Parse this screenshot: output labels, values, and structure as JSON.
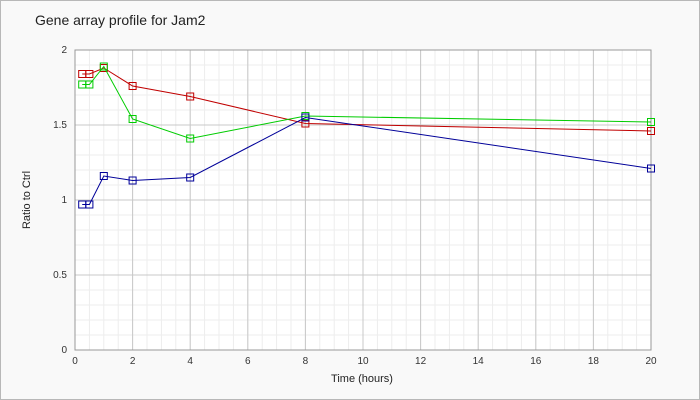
{
  "chart_data": {
    "type": "line",
    "title": "Gene array profile for Jam2",
    "xlabel": "Time (hours)",
    "ylabel": "Ratio to Ctrl",
    "xlim": [
      0,
      20
    ],
    "ylim": [
      0,
      2
    ],
    "xticks": [
      0,
      2,
      4,
      6,
      8,
      10,
      12,
      14,
      16,
      18,
      20
    ],
    "yticks": [
      0,
      0.5,
      1,
      1.5,
      2
    ],
    "xtick_labels": [
      "0",
      "2",
      "4",
      "6",
      "8",
      "10",
      "12",
      "14",
      "16",
      "18",
      "20"
    ],
    "ytick_labels": [
      "0",
      "0.5",
      "1",
      "1.5",
      "2"
    ],
    "grid": true,
    "legend": "none",
    "marker": "square",
    "series": [
      {
        "color": "#c00000",
        "x": [
          0.25,
          0.5,
          1,
          2,
          4,
          8,
          20
        ],
        "y": [
          1.84,
          1.84,
          1.88,
          1.76,
          1.69,
          1.51,
          1.46
        ]
      },
      {
        "color": "#00cc00",
        "x": [
          0.25,
          0.5,
          1,
          2,
          4,
          8,
          20
        ],
        "y": [
          1.77,
          1.77,
          1.89,
          1.54,
          1.41,
          1.56,
          1.52
        ]
      },
      {
        "color": "#000099",
        "x": [
          0.25,
          0.5,
          1,
          2,
          4,
          8,
          20
        ],
        "y": [
          0.97,
          0.97,
          1.16,
          1.13,
          1.15,
          1.55,
          1.21
        ]
      }
    ]
  }
}
